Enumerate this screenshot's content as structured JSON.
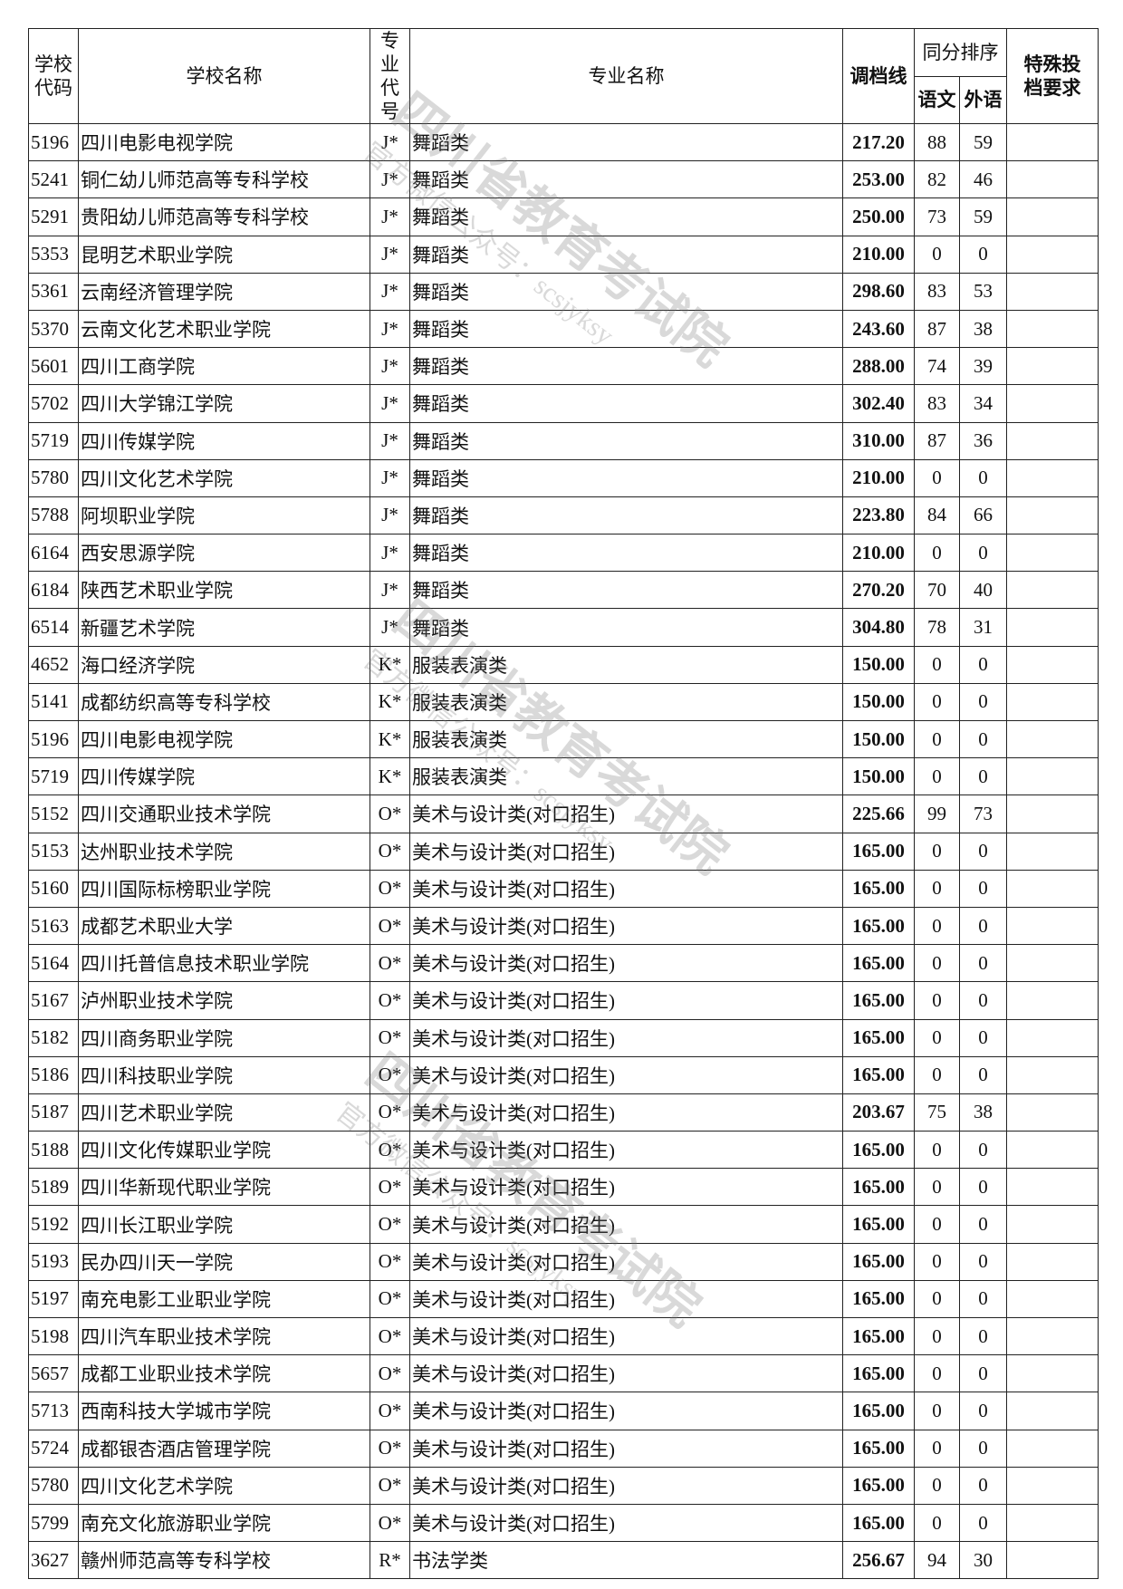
{
  "table": {
    "header": {
      "code": "学校代码",
      "school": "学校名称",
      "major_code": "专业代号",
      "major": "专业名称",
      "line": "调档线",
      "tie": "同分排序",
      "chinese": "语文",
      "foreign": "外语",
      "special": "特殊投档要求"
    },
    "rows": [
      [
        "5196",
        "四川电影电视学院",
        "J*",
        "舞蹈类",
        "217.20",
        "88",
        "59"
      ],
      [
        "5241",
        "铜仁幼儿师范高等专科学校",
        "J*",
        "舞蹈类",
        "253.00",
        "82",
        "46"
      ],
      [
        "5291",
        "贵阳幼儿师范高等专科学校",
        "J*",
        "舞蹈类",
        "250.00",
        "73",
        "59"
      ],
      [
        "5353",
        "昆明艺术职业学院",
        "J*",
        "舞蹈类",
        "210.00",
        "0",
        "0"
      ],
      [
        "5361",
        "云南经济管理学院",
        "J*",
        "舞蹈类",
        "298.60",
        "83",
        "53"
      ],
      [
        "5370",
        "云南文化艺术职业学院",
        "J*",
        "舞蹈类",
        "243.60",
        "87",
        "38"
      ],
      [
        "5601",
        "四川工商学院",
        "J*",
        "舞蹈类",
        "288.00",
        "74",
        "39"
      ],
      [
        "5702",
        "四川大学锦江学院",
        "J*",
        "舞蹈类",
        "302.40",
        "83",
        "34"
      ],
      [
        "5719",
        "四川传媒学院",
        "J*",
        "舞蹈类",
        "310.00",
        "87",
        "36"
      ],
      [
        "5780",
        "四川文化艺术学院",
        "J*",
        "舞蹈类",
        "210.00",
        "0",
        "0"
      ],
      [
        "5788",
        "阿坝职业学院",
        "J*",
        "舞蹈类",
        "223.80",
        "84",
        "66"
      ],
      [
        "6164",
        "西安思源学院",
        "J*",
        "舞蹈类",
        "210.00",
        "0",
        "0"
      ],
      [
        "6184",
        "陕西艺术职业学院",
        "J*",
        "舞蹈类",
        "270.20",
        "70",
        "40"
      ],
      [
        "6514",
        "新疆艺术学院",
        "J*",
        "舞蹈类",
        "304.80",
        "78",
        "31"
      ],
      [
        "4652",
        "海口经济学院",
        "K*",
        "服装表演类",
        "150.00",
        "0",
        "0"
      ],
      [
        "5141",
        "成都纺织高等专科学校",
        "K*",
        "服装表演类",
        "150.00",
        "0",
        "0"
      ],
      [
        "5196",
        "四川电影电视学院",
        "K*",
        "服装表演类",
        "150.00",
        "0",
        "0"
      ],
      [
        "5719",
        "四川传媒学院",
        "K*",
        "服装表演类",
        "150.00",
        "0",
        "0"
      ],
      [
        "5152",
        "四川交通职业技术学院",
        "O*",
        "美术与设计类(对口招生)",
        "225.66",
        "99",
        "73"
      ],
      [
        "5153",
        "达州职业技术学院",
        "O*",
        "美术与设计类(对口招生)",
        "165.00",
        "0",
        "0"
      ],
      [
        "5160",
        "四川国际标榜职业学院",
        "O*",
        "美术与设计类(对口招生)",
        "165.00",
        "0",
        "0"
      ],
      [
        "5163",
        "成都艺术职业大学",
        "O*",
        "美术与设计类(对口招生)",
        "165.00",
        "0",
        "0"
      ],
      [
        "5164",
        "四川托普信息技术职业学院",
        "O*",
        "美术与设计类(对口招生)",
        "165.00",
        "0",
        "0"
      ],
      [
        "5167",
        "泸州职业技术学院",
        "O*",
        "美术与设计类(对口招生)",
        "165.00",
        "0",
        "0"
      ],
      [
        "5182",
        "四川商务职业学院",
        "O*",
        "美术与设计类(对口招生)",
        "165.00",
        "0",
        "0"
      ],
      [
        "5186",
        "四川科技职业学院",
        "O*",
        "美术与设计类(对口招生)",
        "165.00",
        "0",
        "0"
      ],
      [
        "5187",
        "四川艺术职业学院",
        "O*",
        "美术与设计类(对口招生)",
        "203.67",
        "75",
        "38"
      ],
      [
        "5188",
        "四川文化传媒职业学院",
        "O*",
        "美术与设计类(对口招生)",
        "165.00",
        "0",
        "0"
      ],
      [
        "5189",
        "四川华新现代职业学院",
        "O*",
        "美术与设计类(对口招生)",
        "165.00",
        "0",
        "0"
      ],
      [
        "5192",
        "四川长江职业学院",
        "O*",
        "美术与设计类(对口招生)",
        "165.00",
        "0",
        "0"
      ],
      [
        "5193",
        "民办四川天一学院",
        "O*",
        "美术与设计类(对口招生)",
        "165.00",
        "0",
        "0"
      ],
      [
        "5197",
        "南充电影工业职业学院",
        "O*",
        "美术与设计类(对口招生)",
        "165.00",
        "0",
        "0"
      ],
      [
        "5198",
        "四川汽车职业技术学院",
        "O*",
        "美术与设计类(对口招生)",
        "165.00",
        "0",
        "0"
      ],
      [
        "5657",
        "成都工业职业技术学院",
        "O*",
        "美术与设计类(对口招生)",
        "165.00",
        "0",
        "0"
      ],
      [
        "5713",
        "西南科技大学城市学院",
        "O*",
        "美术与设计类(对口招生)",
        "165.00",
        "0",
        "0"
      ],
      [
        "5724",
        "成都银杏酒店管理学院",
        "O*",
        "美术与设计类(对口招生)",
        "165.00",
        "0",
        "0"
      ],
      [
        "5780",
        "四川文化艺术学院",
        "O*",
        "美术与设计类(对口招生)",
        "165.00",
        "0",
        "0"
      ],
      [
        "5799",
        "南充文化旅游职业学院",
        "O*",
        "美术与设计类(对口招生)",
        "165.00",
        "0",
        "0"
      ],
      [
        "3627",
        "赣州师范高等专科学校",
        "R*",
        "书法学类",
        "256.67",
        "94",
        "30"
      ]
    ]
  },
  "watermark": {
    "title": "四川省教育考试院",
    "subtitle": "官方微信公众号：scsjyksy"
  }
}
